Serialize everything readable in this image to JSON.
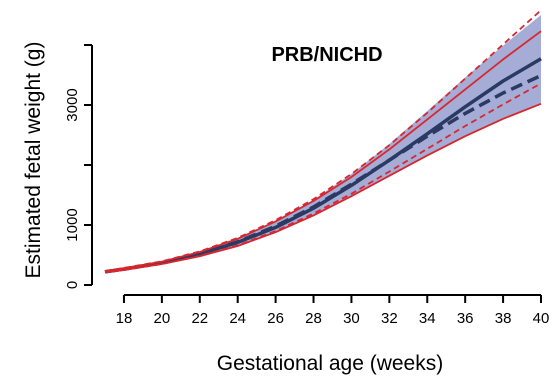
{
  "chart_data": {
    "type": "line",
    "title": "PRB/NICHD",
    "xlabel": "Gestational age (weeks)",
    "ylabel": "Estimated fetal weight (g)",
    "xlim": [
      17,
      40
    ],
    "ylim": [
      0,
      4000
    ],
    "x_ticks": [
      "18",
      "20",
      "22",
      "24",
      "26",
      "28",
      "30",
      "32",
      "34",
      "36",
      "38",
      "40"
    ],
    "y_ticks": [
      "0",
      "1000",
      "3000"
    ],
    "y_tick_values": [
      0,
      1000,
      3000
    ],
    "grid": false,
    "x": [
      17,
      18,
      20,
      22,
      24,
      26,
      28,
      30,
      32,
      34,
      36,
      38,
      40
    ],
    "band": {
      "color": "#a5acd5",
      "lower": [
        210,
        250,
        350,
        480,
        650,
        880,
        1160,
        1480,
        1820,
        2160,
        2480,
        2770,
        3020
      ],
      "upper": [
        230,
        280,
        390,
        550,
        770,
        1060,
        1420,
        1850,
        2350,
        2900,
        3460,
        3990,
        4500
      ]
    },
    "series": [
      {
        "style": "solid",
        "color": "#2b3a63",
        "values": [
          220,
          265,
          370,
          520,
          710,
          960,
          1280,
          1660,
          2080,
          2520,
          2970,
          3400,
          3770
        ]
      },
      {
        "style": "dashed",
        "color": "#2b3a63",
        "values": [
          220,
          265,
          370,
          520,
          720,
          980,
          1300,
          1680,
          2080,
          2480,
          2860,
          3200,
          3490
        ]
      },
      {
        "style": "solid",
        "color": "#d7272f",
        "values": [
          210,
          250,
          350,
          480,
          650,
          880,
          1160,
          1480,
          1820,
          2160,
          2480,
          2770,
          3020
        ]
      },
      {
        "style": "solid",
        "color": "#d7272f",
        "values": [
          230,
          280,
          390,
          550,
          770,
          1060,
          1400,
          1800,
          2260,
          2760,
          3260,
          3760,
          4230
        ]
      },
      {
        "style": "dashed",
        "color": "#d7272f",
        "values": [
          235,
          285,
          395,
          560,
          785,
          1080,
          1430,
          1850,
          2330,
          2870,
          3440,
          4010,
          4580
        ]
      },
      {
        "style": "dashed",
        "color": "#d7272f",
        "values": [
          210,
          250,
          350,
          485,
          660,
          900,
          1190,
          1520,
          1890,
          2270,
          2650,
          3010,
          3360
        ]
      }
    ]
  }
}
